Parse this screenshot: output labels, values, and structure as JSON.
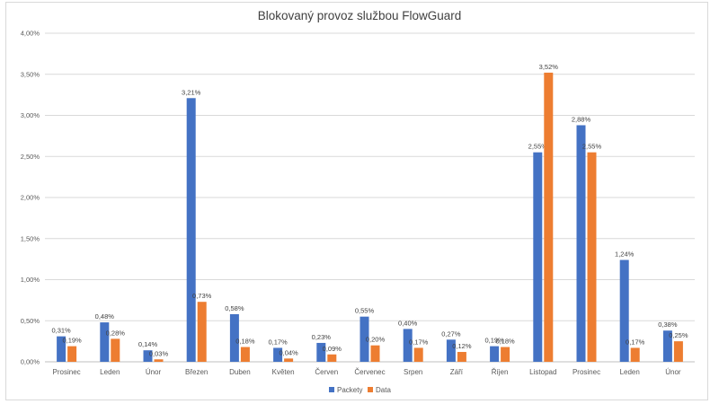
{
  "chart_data": {
    "type": "bar",
    "title": "Blokovaný provoz službou FlowGuard",
    "categories": [
      "Prosinec",
      "Leden",
      "Únor",
      "Březen",
      "Duben",
      "Květen",
      "Červen",
      "Červenec",
      "Srpen",
      "Září",
      "Říjen",
      "Listopad",
      "Prosinec",
      "Leden",
      "Únor"
    ],
    "series": [
      {
        "name": "Packety",
        "color": "#4472c4",
        "values": [
          0.31,
          0.48,
          0.14,
          3.21,
          0.58,
          0.17,
          0.23,
          0.55,
          0.4,
          0.27,
          0.19,
          2.55,
          2.88,
          1.24,
          0.38
        ],
        "labels": [
          "0,31%",
          "0,48%",
          "0,14%",
          "3,21%",
          "0,58%",
          "0,17%",
          "0,23%",
          "0,55%",
          "0,40%",
          "0,27%",
          "0,19%",
          "2,55%",
          "2,88%",
          "1,24%",
          "0,38%"
        ]
      },
      {
        "name": "Data",
        "color": "#ed7d31",
        "values": [
          0.19,
          0.28,
          0.03,
          0.73,
          0.18,
          0.04,
          0.09,
          0.2,
          0.17,
          0.12,
          0.18,
          3.52,
          2.55,
          0.17,
          0.25
        ],
        "labels": [
          "0,19%",
          "0,28%",
          "0,03%",
          "0,73%",
          "0,18%",
          "0,04%",
          "0,09%",
          "0,20%",
          "0,17%",
          "0,12%",
          "0,18%",
          "3,52%",
          "2,55%",
          "0,17%",
          "0,25%"
        ]
      }
    ],
    "ylim": [
      0,
      4.0
    ],
    "yticks": [
      0,
      0.5,
      1.0,
      1.5,
      2.0,
      2.5,
      3.0,
      3.5,
      4.0
    ],
    "ytick_labels": [
      "0,00%",
      "0,50%",
      "1,00%",
      "1,50%",
      "2,00%",
      "2,50%",
      "3,00%",
      "3,50%",
      "4,00%"
    ],
    "grid": true,
    "gridline_color": "#d9d9d9",
    "legend_position": "bottom"
  }
}
